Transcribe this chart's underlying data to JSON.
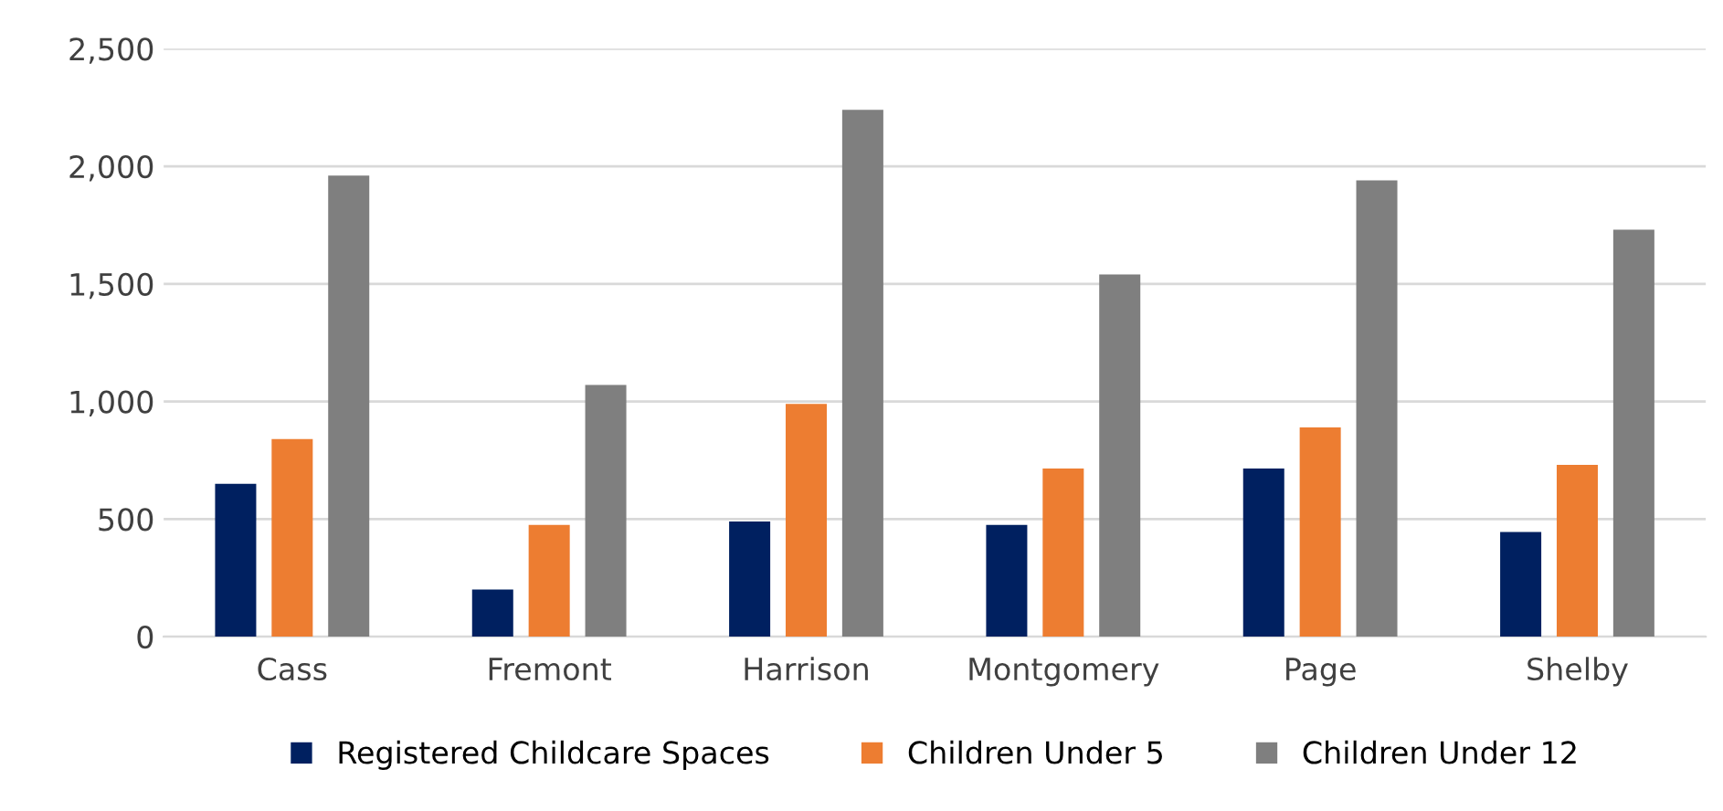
{
  "chart_data": {
    "type": "bar",
    "categories": [
      "Cass",
      "Fremont",
      "Harrison",
      "Montgomery",
      "Page",
      "Shelby"
    ],
    "series": [
      {
        "name": "Registered Childcare Spaces",
        "color": "#002060",
        "values": [
          650,
          200,
          490,
          475,
          715,
          445
        ]
      },
      {
        "name": "Children Under 5",
        "color": "#ed7d31",
        "values": [
          840,
          475,
          990,
          715,
          890,
          730
        ]
      },
      {
        "name": "Children Under 12",
        "color": "#7f7f7f",
        "values": [
          1960,
          1070,
          2240,
          1540,
          1940,
          1730
        ]
      }
    ],
    "ylim": [
      0,
      2500
    ],
    "yticks": [
      {
        "value": 0,
        "label": "0"
      },
      {
        "value": 500,
        "label": "500"
      },
      {
        "value": 1000,
        "label": "1,000"
      },
      {
        "value": 1500,
        "label": "1,500"
      },
      {
        "value": 2000,
        "label": "2,000"
      },
      {
        "value": 2500,
        "label": "2,500"
      }
    ],
    "grid": "y",
    "legend": "bottom"
  }
}
